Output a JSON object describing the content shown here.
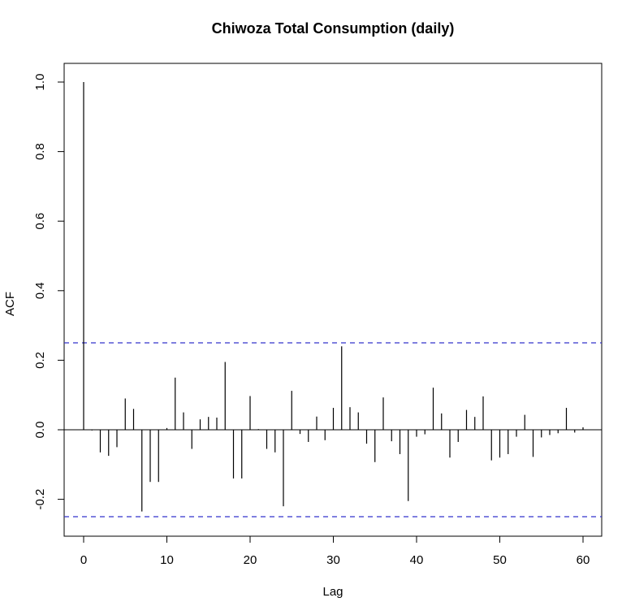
{
  "chart_data": {
    "type": "bar",
    "subtype": "acf",
    "title": "Chiwoza Total Consumption (daily)",
    "xlabel": "Lag",
    "ylabel": "ACF",
    "xlim": [
      -2.5,
      62.5
    ],
    "ylim": [
      -0.3,
      1.05
    ],
    "xticks": [
      0,
      10,
      20,
      30,
      40,
      50,
      60
    ],
    "yticks": [
      "-0.2",
      "0.0",
      "0.2",
      "0.4",
      "0.6",
      "0.8",
      "1.0"
    ],
    "ci_bounds": [
      0.25,
      -0.25
    ],
    "x": [
      0,
      1,
      2,
      3,
      4,
      5,
      6,
      7,
      8,
      9,
      10,
      11,
      12,
      13,
      14,
      15,
      16,
      17,
      18,
      19,
      20,
      21,
      22,
      23,
      24,
      25,
      26,
      27,
      28,
      29,
      30,
      31,
      32,
      33,
      34,
      35,
      36,
      37,
      38,
      39,
      40,
      41,
      42,
      43,
      44,
      45,
      46,
      47,
      48,
      49,
      50,
      51,
      52,
      53,
      54,
      55,
      56,
      57,
      58,
      59,
      60
    ],
    "values": [
      1.0,
      -0.002,
      -0.065,
      -0.075,
      -0.05,
      0.09,
      0.06,
      -0.235,
      -0.15,
      -0.15,
      0.005,
      0.15,
      0.05,
      -0.055,
      0.03,
      0.037,
      0.035,
      0.195,
      -0.14,
      -0.14,
      0.097,
      0.002,
      -0.055,
      -0.065,
      -0.22,
      0.112,
      -0.012,
      -0.035,
      0.038,
      -0.03,
      0.063,
      0.24,
      0.065,
      0.05,
      -0.04,
      -0.093,
      0.093,
      -0.033,
      -0.07,
      -0.205,
      -0.02,
      -0.013,
      0.121,
      0.047,
      -0.08,
      -0.035,
      0.057,
      0.037,
      0.096,
      -0.088,
      -0.08,
      -0.07,
      -0.02,
      0.043,
      -0.078,
      -0.022,
      -0.015,
      -0.01,
      0.063,
      -0.008,
      0.007
    ],
    "grid": false,
    "colors": {
      "lines": "#000000",
      "ci": "#3333cc"
    }
  }
}
